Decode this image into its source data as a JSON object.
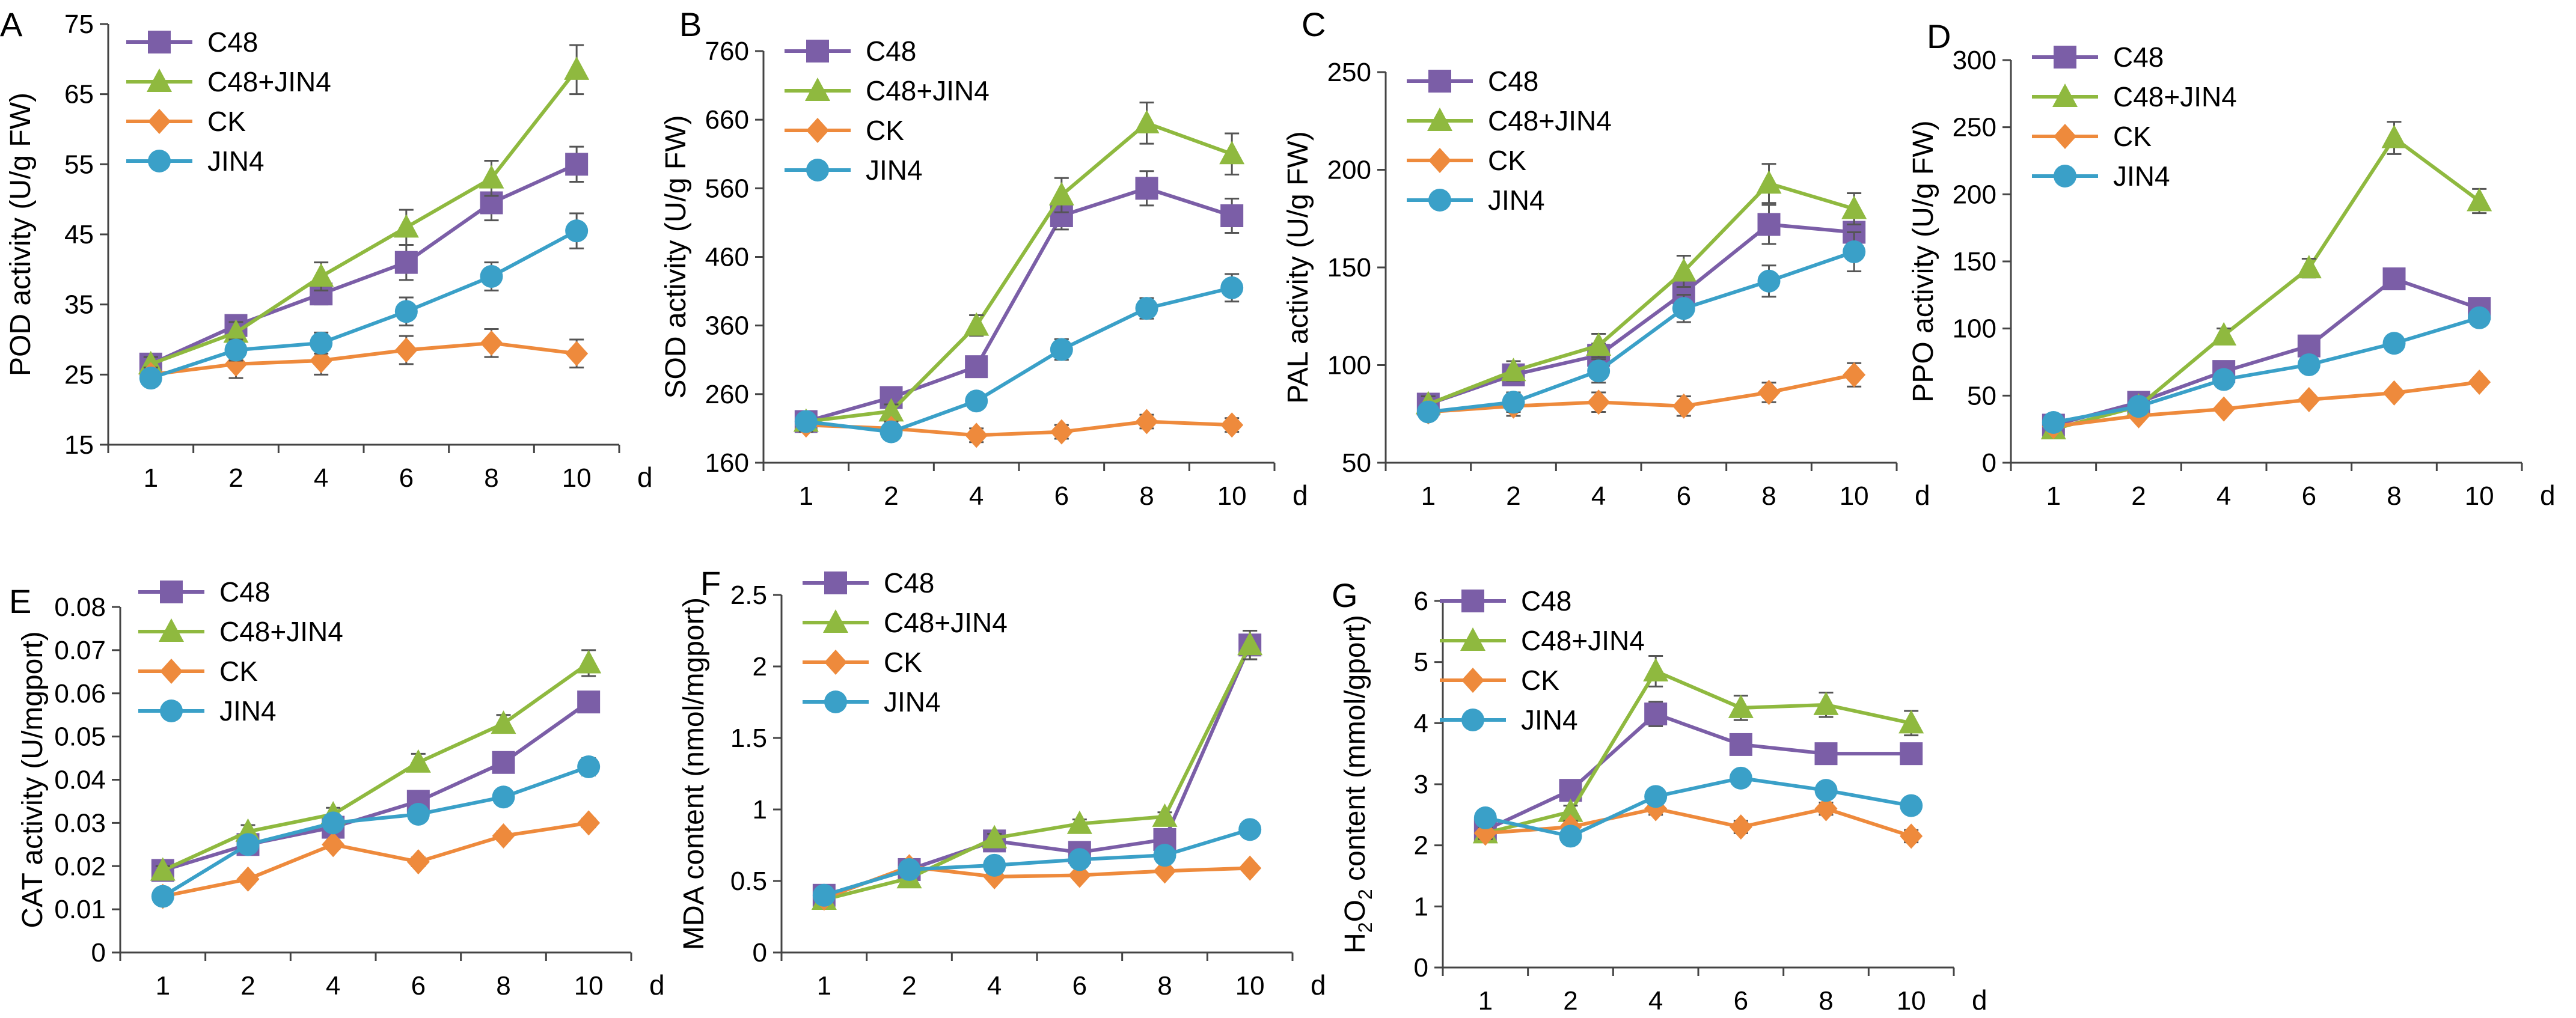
{
  "figure": {
    "styles": {
      "C48": {
        "color": "#7b5ea7",
        "marker": "square"
      },
      "C48+JIN4": {
        "color": "#8fb93f",
        "marker": "triangle"
      },
      "CK": {
        "color": "#ee8a3c",
        "marker": "diamond"
      },
      "JIN4": {
        "color": "#3aa0c8",
        "marker": "circle"
      }
    }
  },
  "chart_data": [
    {
      "panel": "A",
      "type": "line",
      "x_unit": "d",
      "ylabel": "POD  activity (U/g FW)",
      "x": [
        "1",
        "2",
        "4",
        "6",
        "8",
        "10"
      ],
      "yticks": [
        "15",
        "25",
        "35",
        "45",
        "55",
        "65",
        "75"
      ],
      "ylim": [
        15,
        75
      ],
      "series": [
        {
          "name": "C48",
          "values": [
            26.5,
            32,
            36.5,
            41,
            49.5,
            55
          ],
          "err": [
            1,
            1,
            1.5,
            2.5,
            2.5,
            2.5
          ]
        },
        {
          "name": "C48+JIN4",
          "values": [
            26.5,
            31,
            39,
            46,
            53,
            68.5
          ],
          "err": [
            1,
            1.5,
            2,
            2.5,
            2.5,
            3.5
          ]
        },
        {
          "name": "CK",
          "values": [
            25,
            26.5,
            27,
            28.5,
            29.5,
            28
          ],
          "err": [
            1,
            2,
            2,
            2,
            2,
            2
          ]
        },
        {
          "name": "JIN4",
          "values": [
            24.5,
            28.5,
            29.5,
            34,
            39,
            45.5
          ],
          "err": [
            1,
            1.5,
            1.5,
            2,
            2,
            2.5
          ]
        }
      ]
    },
    {
      "panel": "B",
      "type": "line",
      "x_unit": "d",
      "ylabel": "SOD activity (U/g FW)",
      "x": [
        "1",
        "2",
        "4",
        "6",
        "8",
        "10"
      ],
      "yticks": [
        "160",
        "260",
        "360",
        "460",
        "560",
        "660",
        "760"
      ],
      "ylim": [
        160,
        760
      ],
      "series": [
        {
          "name": "C48",
          "values": [
            220,
            255,
            300,
            520,
            560,
            520
          ],
          "err": [
            10,
            10,
            15,
            20,
            25,
            25
          ]
        },
        {
          "name": "C48+JIN4",
          "values": [
            220,
            235,
            360,
            550,
            655,
            610
          ],
          "err": [
            10,
            10,
            15,
            25,
            30,
            30
          ]
        },
        {
          "name": "CK",
          "values": [
            215,
            210,
            200,
            205,
            220,
            215
          ],
          "err": [
            10,
            10,
            10,
            10,
            10,
            10
          ]
        },
        {
          "name": "JIN4",
          "values": [
            220,
            205,
            250,
            325,
            385,
            415
          ],
          "err": [
            10,
            10,
            10,
            15,
            15,
            20
          ]
        }
      ]
    },
    {
      "panel": "C",
      "type": "line",
      "x_unit": "d",
      "ylabel": "PAL activity (U/g FW)",
      "x": [
        "1",
        "2",
        "4",
        "6",
        "8",
        "10"
      ],
      "yticks": [
        "50",
        "100",
        "150",
        "200",
        "250"
      ],
      "ylim": [
        50,
        250
      ],
      "series": [
        {
          "name": "C48",
          "values": [
            80,
            95,
            105,
            137,
            172,
            168
          ],
          "err": [
            4,
            5,
            6,
            8,
            10,
            10
          ]
        },
        {
          "name": "C48+JIN4",
          "values": [
            80,
            97,
            110,
            148,
            193,
            180
          ],
          "err": [
            4,
            5,
            6,
            8,
            10,
            8
          ]
        },
        {
          "name": "CK",
          "values": [
            76,
            79,
            81,
            79,
            86,
            95
          ],
          "err": [
            3,
            5,
            5,
            5,
            5,
            6
          ]
        },
        {
          "name": "JIN4",
          "values": [
            76,
            81,
            97,
            129,
            143,
            158
          ],
          "err": [
            3,
            5,
            6,
            7,
            8,
            10
          ]
        }
      ]
    },
    {
      "panel": "D",
      "type": "line",
      "x_unit": "d",
      "ylabel": "PPO activity (U/g FW)",
      "x": [
        "1",
        "2",
        "4",
        "6",
        "8",
        "10"
      ],
      "yticks": [
        "0",
        "50",
        "100",
        "150",
        "200",
        "250",
        "300"
      ],
      "ylim": [
        0,
        300
      ],
      "series": [
        {
          "name": "C48",
          "values": [
            28,
            45,
            68,
            87,
            137,
            115
          ],
          "err": [
            2,
            3,
            4,
            5,
            5,
            5
          ]
        },
        {
          "name": "C48+JIN4",
          "values": [
            25,
            42,
            95,
            145,
            242,
            195
          ],
          "err": [
            2,
            3,
            5,
            7,
            12,
            9
          ]
        },
        {
          "name": "CK",
          "values": [
            27,
            35,
            40,
            47,
            52,
            60
          ],
          "err": [
            2,
            2,
            2,
            3,
            3,
            3
          ]
        },
        {
          "name": "JIN4",
          "values": [
            30,
            42,
            62,
            73,
            89,
            108
          ],
          "err": [
            2,
            3,
            4,
            4,
            4,
            5
          ]
        }
      ]
    },
    {
      "panel": "E",
      "type": "line",
      "x_unit": "d",
      "ylabel": "CAT activity (U/mgport)",
      "x": [
        "1",
        "2",
        "4",
        "6",
        "8",
        "10"
      ],
      "yticks": [
        "0",
        "0.01",
        "0.02",
        "0.03",
        "0.04",
        "0.05",
        "0.06",
        "0.07",
        "0.08"
      ],
      "ylim": [
        0,
        0.08
      ],
      "series": [
        {
          "name": "C48",
          "values": [
            0.019,
            0.025,
            0.029,
            0.035,
            0.044,
            0.058
          ],
          "err": [
            0.001,
            0.001,
            0.001,
            0.0015,
            0.0015,
            0.002
          ]
        },
        {
          "name": "C48+JIN4",
          "values": [
            0.019,
            0.028,
            0.032,
            0.044,
            0.053,
            0.067
          ],
          "err": [
            0.001,
            0.0015,
            0.0015,
            0.002,
            0.002,
            0.003
          ]
        },
        {
          "name": "CK",
          "values": [
            0.013,
            0.017,
            0.025,
            0.021,
            0.027,
            0.03
          ],
          "err": [
            0.001,
            0.001,
            0.001,
            0.001,
            0.001,
            0.001
          ]
        },
        {
          "name": "JIN4",
          "values": [
            0.013,
            0.025,
            0.03,
            0.032,
            0.036,
            0.043
          ],
          "err": [
            0.001,
            0.0015,
            0.0015,
            0.0015,
            0.0015,
            0.002
          ]
        }
      ]
    },
    {
      "panel": "F",
      "type": "line",
      "x_unit": "d",
      "ylabel": "MDA content  (nmol/mgport)",
      "x": [
        "1",
        "2",
        "4",
        "6",
        "8",
        "10"
      ],
      "yticks": [
        "0",
        "0.5",
        "1",
        "1.5",
        "2",
        "2.5"
      ],
      "ylim": [
        0,
        2.5
      ],
      "series": [
        {
          "name": "C48",
          "values": [
            0.4,
            0.58,
            0.78,
            0.7,
            0.79,
            2.15
          ],
          "err": [
            0.02,
            0.03,
            0.03,
            0.03,
            0.03,
            0.1
          ]
        },
        {
          "name": "C48+JIN4",
          "values": [
            0.37,
            0.52,
            0.8,
            0.9,
            0.95,
            2.15
          ],
          "err": [
            0.02,
            0.03,
            0.03,
            0.03,
            0.03,
            0.1
          ]
        },
        {
          "name": "CK",
          "values": [
            0.38,
            0.6,
            0.53,
            0.54,
            0.57,
            0.59
          ],
          "err": [
            0.02,
            0.02,
            0.02,
            0.02,
            0.02,
            0.02
          ]
        },
        {
          "name": "JIN4",
          "values": [
            0.4,
            0.58,
            0.61,
            0.65,
            0.68,
            0.86
          ],
          "err": [
            0.02,
            0.02,
            0.02,
            0.02,
            0.02,
            0.03
          ]
        }
      ]
    },
    {
      "panel": "G",
      "type": "line",
      "x_unit": "d",
      "ylabel_parts": [
        "H",
        "2",
        "O",
        "2",
        " content (mmol/gport)"
      ],
      "x": [
        "1",
        "2",
        "4",
        "6",
        "8",
        "10"
      ],
      "yticks": [
        "0",
        "1",
        "2",
        "3",
        "4",
        "5",
        "6"
      ],
      "ylim": [
        0,
        6
      ],
      "series": [
        {
          "name": "C48",
          "values": [
            2.25,
            2.9,
            4.15,
            3.65,
            3.5,
            3.5
          ],
          "err": [
            0.1,
            0.1,
            0.2,
            0.15,
            0.15,
            0.15
          ]
        },
        {
          "name": "C48+JIN4",
          "values": [
            2.2,
            2.55,
            4.85,
            4.25,
            4.3,
            4.0
          ],
          "err": [
            0.1,
            0.1,
            0.25,
            0.2,
            0.2,
            0.2
          ]
        },
        {
          "name": "CK",
          "values": [
            2.2,
            2.3,
            2.6,
            2.3,
            2.6,
            2.15
          ],
          "err": [
            0.1,
            0.1,
            0.1,
            0.1,
            0.1,
            0.1
          ]
        },
        {
          "name": "JIN4",
          "values": [
            2.45,
            2.15,
            2.8,
            3.1,
            2.9,
            2.65
          ],
          "err": [
            0.1,
            0.1,
            0.1,
            0.1,
            0.1,
            0.1
          ]
        }
      ]
    }
  ]
}
